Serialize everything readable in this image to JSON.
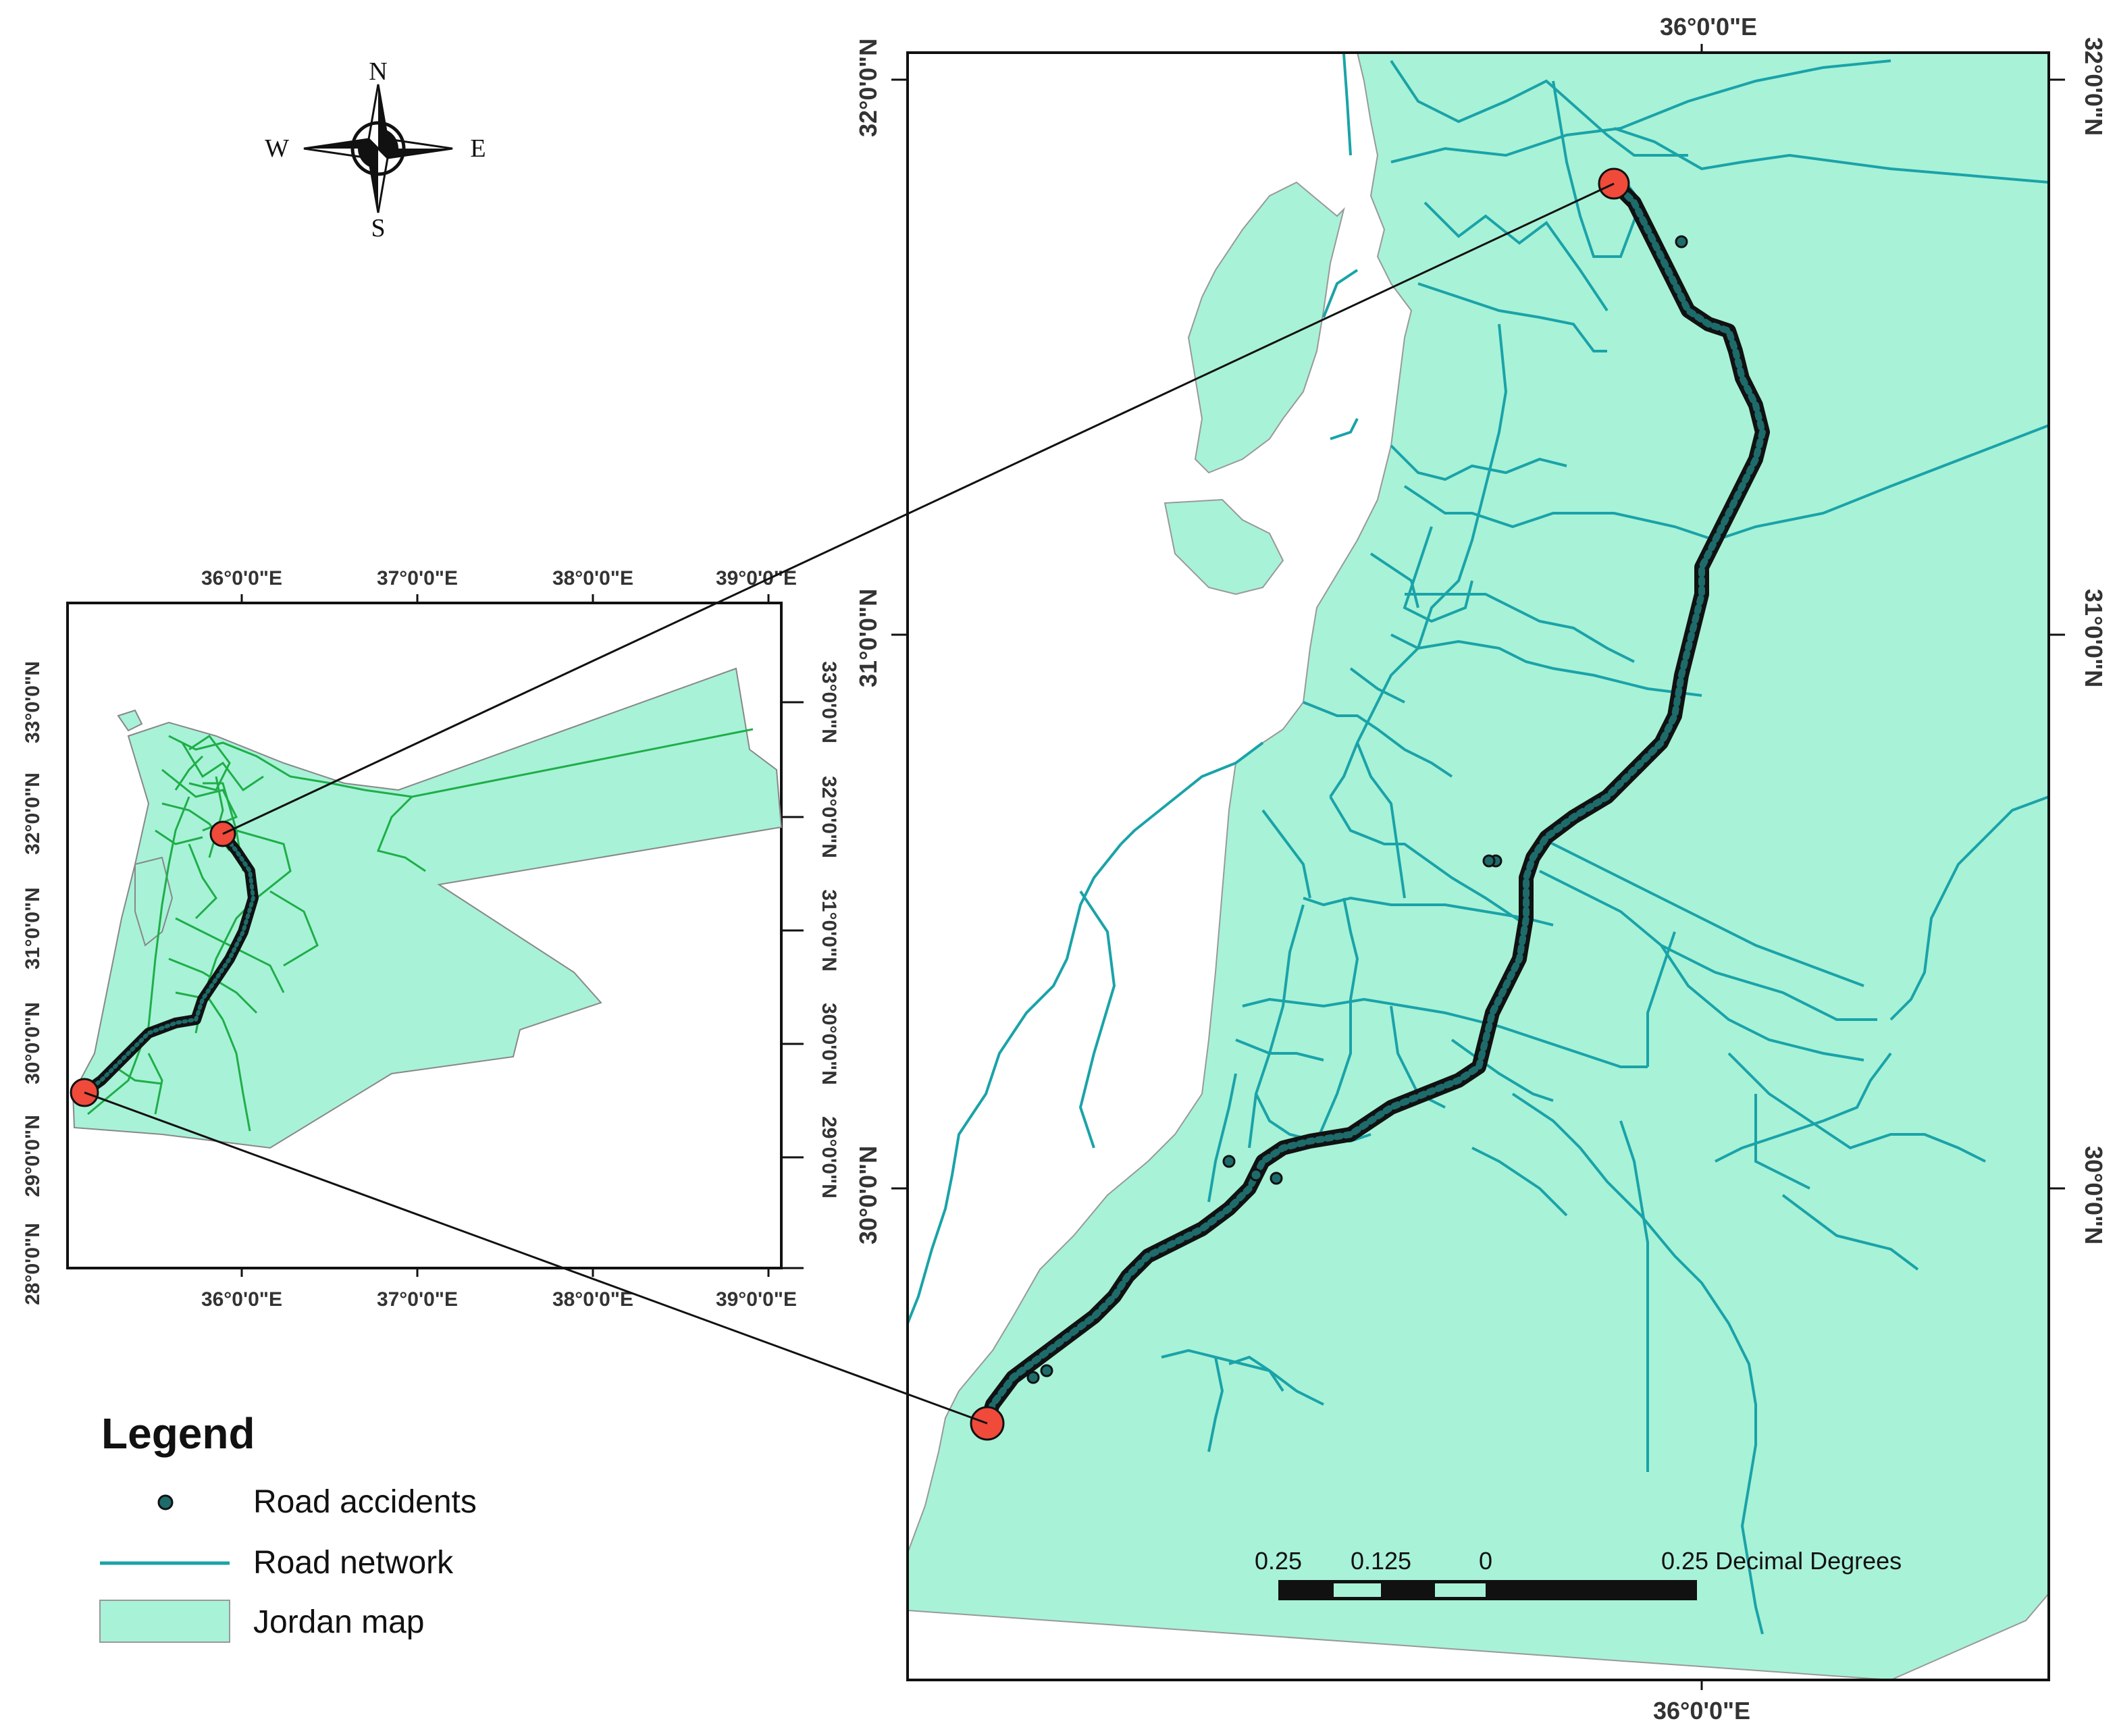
{
  "compass": {
    "n": "N",
    "s": "S",
    "e": "E",
    "w": "W"
  },
  "inset_map": {
    "top_ticks": [
      "36°0'0\"E",
      "37°0'0\"E",
      "38°0'0\"E",
      "39°0'0\"E"
    ],
    "bottom_ticks": [
      "36°0'0\"E",
      "37°0'0\"E",
      "38°0'0\"E",
      "39°0'0\"E"
    ],
    "left_ticks": [
      "33°0'0\"N",
      "32°0'0\"N",
      "31°0'0\"N",
      "30°0'0\"N",
      "29°0'0\"N",
      "28°0'0\"N"
    ],
    "right_ticks": [
      "33°0'0\"N",
      "32°0'0\"N",
      "31°0'0\"N",
      "30°0'0\"N",
      "29°0'0\"N"
    ]
  },
  "main_map": {
    "top_tick": "36°0'0\"E",
    "bottom_tick": "36°0'0\"E",
    "left_ticks": [
      "32°0'0\"N",
      "31°0'0\"N",
      "30°0'0\"N"
    ],
    "right_ticks": [
      "32°0'0\"N",
      "31°0'0\"N",
      "30°0'0\"N"
    ]
  },
  "legend": {
    "title": "Legend",
    "items": [
      {
        "label": "Road accidents",
        "symbol": "point",
        "color": "#1e6b6b"
      },
      {
        "label": "Road network",
        "symbol": "line",
        "color": "#1aa3a8"
      },
      {
        "label": "Jordan map",
        "symbol": "polygon",
        "color": "#a8f2d8"
      }
    ]
  },
  "scale_bar": {
    "labels": [
      "0.25",
      "0.125",
      "0"
    ],
    "end_label": "0.25 Decimal Degrees"
  },
  "colors": {
    "land": "#a8f2d8",
    "road_main": "#1aa3a8",
    "road_inset": "#1fae48",
    "accident": "#1e6b6b",
    "endpoint": "#f04a3a"
  }
}
